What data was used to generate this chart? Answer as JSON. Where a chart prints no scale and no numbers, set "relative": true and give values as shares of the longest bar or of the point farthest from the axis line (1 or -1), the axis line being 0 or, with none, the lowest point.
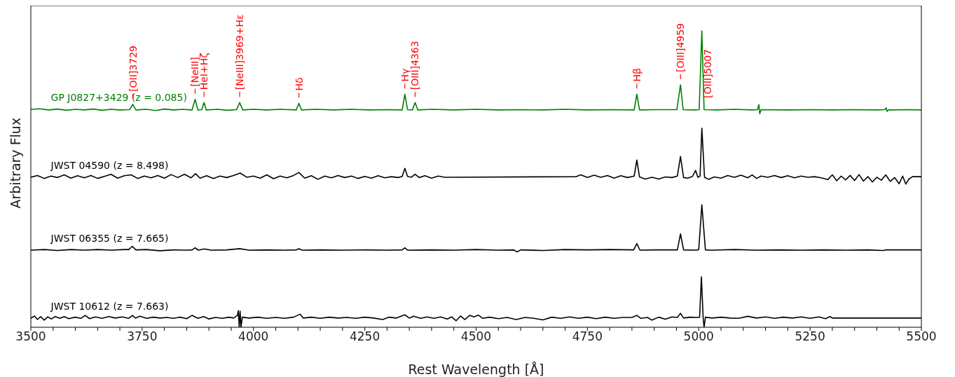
{
  "chart_data": {
    "type": "line",
    "relative": true,
    "xlabel": "Rest Wavelength [Å]",
    "ylabel": "Arbitrary Flux",
    "xlim": [
      3500,
      5500
    ],
    "xticks": [
      3500,
      {
        "value": 3550,
        "label": null
      },
      {
        "value": 3600,
        "label": null
      },
      {
        "value": 3650,
        "label": null
      },
      {
        "value": 3700,
        "label": null
      },
      3750,
      {
        "value": 3800,
        "label": null
      },
      {
        "value": 3850,
        "label": null
      },
      {
        "value": 3900,
        "label": null
      },
      {
        "value": 3950,
        "label": null
      },
      4000,
      {
        "value": 4050,
        "label": null
      },
      {
        "value": 4100,
        "label": null
      },
      {
        "value": 4150,
        "label": null
      },
      {
        "value": 4200,
        "label": null
      },
      4250,
      {
        "value": 4300,
        "label": null
      },
      {
        "value": 4350,
        "label": null
      },
      {
        "value": 4400,
        "label": null
      },
      {
        "value": 4450,
        "label": null
      },
      4500,
      {
        "value": 4550,
        "label": null
      },
      {
        "value": 4600,
        "label": null
      },
      {
        "value": 4650,
        "label": null
      },
      {
        "value": 4700,
        "label": null
      },
      4750,
      {
        "value": 4800,
        "label": null
      },
      {
        "value": 4850,
        "label": null
      },
      {
        "value": 4900,
        "label": null
      },
      {
        "value": 4950,
        "label": null
      },
      5000,
      {
        "value": 5050,
        "label": null
      },
      {
        "value": 5100,
        "label": null
      },
      {
        "value": 5150,
        "label": null
      },
      {
        "value": 5200,
        "label": null
      },
      5250,
      {
        "value": 5300,
        "label": null
      },
      {
        "value": 5350,
        "label": null
      },
      {
        "value": 5400,
        "label": null
      },
      {
        "value": 5450,
        "label": null
      },
      5500
    ],
    "series": [
      {
        "name": "GP J0827+3429 (z = 0.085)",
        "color": "#008000",
        "x": [
          3500,
          3520,
          3540,
          3560,
          3580,
          3600,
          3620,
          3640,
          3660,
          3680,
          3700,
          3722,
          3729,
          3736,
          3760,
          3780,
          3800,
          3820,
          3840,
          3862,
          3869,
          3875,
          3884,
          3889,
          3894,
          3920,
          3940,
          3962,
          3969,
          3976,
          4000,
          4030,
          4060,
          4096,
          4102,
          4108,
          4140,
          4180,
          4220,
          4260,
          4300,
          4334,
          4340,
          4346,
          4357,
          4363,
          4369,
          4400,
          4450,
          4500,
          4550,
          4600,
          4650,
          4700,
          4750,
          4800,
          4855,
          4861,
          4867,
          4900,
          4951,
          4959,
          4965,
          4990,
          5001,
          5007,
          5012,
          5040,
          5080,
          5120,
          5132,
          5135,
          5137,
          5140,
          5200,
          5250,
          5300,
          5350,
          5400,
          5418,
          5421,
          5423,
          5426,
          5470,
          5500
        ],
        "values": [
          0.735,
          0.737,
          0.733,
          0.736,
          0.732,
          0.735,
          0.733,
          0.736,
          0.732,
          0.735,
          0.733,
          0.734,
          0.752,
          0.733,
          0.735,
          0.731,
          0.736,
          0.733,
          0.735,
          0.733,
          0.769,
          0.733,
          0.734,
          0.758,
          0.733,
          0.735,
          0.732,
          0.734,
          0.758,
          0.733,
          0.735,
          0.733,
          0.735,
          0.733,
          0.755,
          0.733,
          0.735,
          0.733,
          0.735,
          0.733,
          0.734,
          0.733,
          0.786,
          0.734,
          0.733,
          0.758,
          0.733,
          0.735,
          0.733,
          0.735,
          0.733,
          0.734,
          0.733,
          0.735,
          0.733,
          0.734,
          0.733,
          0.786,
          0.733,
          0.734,
          0.734,
          0.818,
          0.734,
          0.733,
          0.734,
          1.0,
          0.734,
          0.733,
          0.735,
          0.733,
          0.734,
          0.751,
          0.72,
          0.734,
          0.733,
          0.734,
          0.733,
          0.734,
          0.733,
          0.734,
          0.74,
          0.728,
          0.733,
          0.734,
          0.733
        ]
      },
      {
        "name": "JWST 04590 (z = 8.498)",
        "color": "#000000",
        "x": [
          3500,
          3515,
          3530,
          3545,
          3560,
          3575,
          3590,
          3605,
          3620,
          3635,
          3650,
          3665,
          3680,
          3695,
          3710,
          3725,
          3740,
          3755,
          3770,
          3785,
          3800,
          3815,
          3830,
          3845,
          3860,
          3870,
          3880,
          3895,
          3910,
          3925,
          3940,
          3955,
          3970,
          3985,
          4000,
          4015,
          4030,
          4045,
          4060,
          4075,
          4090,
          4102,
          4115,
          4130,
          4145,
          4160,
          4175,
          4190,
          4205,
          4220,
          4235,
          4250,
          4265,
          4280,
          4295,
          4310,
          4325,
          4334,
          4340,
          4346,
          4355,
          4363,
          4372,
          4385,
          4400,
          4415,
          4430,
          4725,
          4735,
          4750,
          4765,
          4780,
          4795,
          4810,
          4825,
          4840,
          4855,
          4861,
          4867,
          4880,
          4895,
          4910,
          4925,
          4940,
          4952,
          4959,
          4966,
          4975,
          4986,
          4993,
          4998,
          5003,
          5007,
          5013,
          5022,
          5035,
          5050,
          5065,
          5080,
          5095,
          5110,
          5120,
          5130,
          5140,
          5155,
          5170,
          5185,
          5200,
          5215,
          5230,
          5245,
          5260,
          5275,
          5290,
          5300,
          5310,
          5320,
          5330,
          5340,
          5350,
          5360,
          5370,
          5380,
          5390,
          5400,
          5410,
          5420,
          5430,
          5440,
          5450,
          5458,
          5465,
          5472,
          5480,
          5500
        ],
        "values": [
          0.506,
          0.512,
          0.502,
          0.51,
          0.505,
          0.514,
          0.503,
          0.511,
          0.504,
          0.512,
          0.502,
          0.509,
          0.516,
          0.503,
          0.511,
          0.514,
          0.502,
          0.51,
          0.504,
          0.512,
          0.503,
          0.515,
          0.505,
          0.516,
          0.504,
          0.518,
          0.503,
          0.511,
          0.502,
          0.51,
          0.505,
          0.512,
          0.52,
          0.506,
          0.51,
          0.503,
          0.514,
          0.501,
          0.51,
          0.504,
          0.512,
          0.522,
          0.503,
          0.511,
          0.499,
          0.51,
          0.504,
          0.512,
          0.505,
          0.51,
          0.502,
          0.509,
          0.503,
          0.511,
          0.504,
          0.508,
          0.505,
          0.509,
          0.536,
          0.509,
          0.506,
          0.516,
          0.505,
          0.511,
          0.503,
          0.51,
          0.506,
          0.508,
          0.514,
          0.505,
          0.513,
          0.506,
          0.512,
          0.503,
          0.511,
          0.505,
          0.51,
          0.564,
          0.507,
          0.5,
          0.506,
          0.5,
          0.507,
          0.505,
          0.51,
          0.576,
          0.505,
          0.503,
          0.509,
          0.529,
          0.506,
          0.51,
          0.671,
          0.506,
          0.499,
          0.507,
          0.503,
          0.512,
          0.506,
          0.513,
          0.504,
          0.514,
          0.502,
          0.51,
          0.506,
          0.512,
          0.505,
          0.511,
          0.504,
          0.51,
          0.506,
          0.508,
          0.504,
          0.498,
          0.514,
          0.494,
          0.51,
          0.497,
          0.512,
          0.495,
          0.515,
          0.493,
          0.508,
          0.49,
          0.506,
          0.496,
          0.514,
          0.492,
          0.505,
          0.484,
          0.51,
          0.483,
          0.5,
          0.508,
          0.508
        ]
      },
      {
        "name": "JWST 06355 (z = 7.665)",
        "color": "#000000",
        "x": [
          3500,
          3530,
          3560,
          3590,
          3620,
          3650,
          3680,
          3710,
          3720,
          3728,
          3736,
          3760,
          3790,
          3820,
          3850,
          3862,
          3869,
          3876,
          3890,
          3905,
          3940,
          3969,
          3990,
          4030,
          4070,
          4096,
          4102,
          4110,
          4150,
          4200,
          4250,
          4300,
          4334,
          4340,
          4346,
          4400,
          4450,
          4500,
          4550,
          4585,
          4592,
          4600,
          4650,
          4700,
          4750,
          4800,
          4854,
          4861,
          4868,
          4900,
          4952,
          4959,
          4966,
          4995,
          5000,
          5007,
          5015,
          5030,
          5080,
          5130,
          5180,
          5230,
          5280,
          5330,
          5380,
          5415,
          5420,
          5500
        ],
        "values": [
          0.26,
          0.262,
          0.259,
          0.262,
          0.26,
          0.262,
          0.26,
          0.262,
          0.262,
          0.273,
          0.261,
          0.262,
          0.258,
          0.261,
          0.26,
          0.261,
          0.268,
          0.26,
          0.264,
          0.26,
          0.261,
          0.265,
          0.26,
          0.261,
          0.26,
          0.261,
          0.265,
          0.26,
          0.261,
          0.26,
          0.261,
          0.26,
          0.261,
          0.268,
          0.26,
          0.261,
          0.26,
          0.262,
          0.26,
          0.261,
          0.254,
          0.261,
          0.259,
          0.262,
          0.261,
          0.262,
          0.261,
          0.282,
          0.26,
          0.261,
          0.261,
          0.315,
          0.261,
          0.26,
          0.262,
          0.413,
          0.261,
          0.26,
          0.262,
          0.26,
          0.261,
          0.26,
          0.261,
          0.26,
          0.261,
          0.259,
          0.261,
          0.261
        ]
      },
      {
        "name": "JWST 10612 (z = 7.663)",
        "color": "#000000",
        "x": [
          3500,
          3508,
          3515,
          3522,
          3530,
          3538,
          3546,
          3555,
          3565,
          3575,
          3585,
          3600,
          3612,
          3622,
          3632,
          3645,
          3660,
          3675,
          3690,
          3705,
          3720,
          3728,
          3735,
          3745,
          3760,
          3775,
          3790,
          3805,
          3820,
          3835,
          3850,
          3862,
          3875,
          3888,
          3900,
          3915,
          3930,
          3945,
          3955,
          3964,
          3966,
          3968,
          3970,
          3972,
          3975,
          3990,
          4010,
          4030,
          4050,
          4070,
          4090,
          4105,
          4112,
          4130,
          4150,
          4170,
          4190,
          4210,
          4230,
          4250,
          4270,
          4290,
          4305,
          4320,
          4340,
          4350,
          4360,
          4375,
          4390,
          4405,
          4420,
          4435,
          4445,
          4455,
          4465,
          4475,
          4485,
          4495,
          4505,
          4515,
          4530,
          4550,
          4570,
          4590,
          4610,
          4630,
          4650,
          4670,
          4690,
          4710,
          4730,
          4750,
          4770,
          4790,
          4810,
          4830,
          4850,
          4861,
          4870,
          4885,
          4895,
          4910,
          4925,
          4940,
          4952,
          4959,
          4966,
          4980,
          4995,
          5002,
          5006,
          5010,
          5012,
          5015,
          5030,
          5050,
          5070,
          5090,
          5110,
          5130,
          5150,
          5170,
          5190,
          5210,
          5230,
          5250,
          5270,
          5285,
          5295,
          5300,
          5500
        ],
        "values": [
          0.03,
          0.038,
          0.026,
          0.036,
          0.024,
          0.035,
          0.028,
          0.036,
          0.03,
          0.036,
          0.029,
          0.034,
          0.03,
          0.04,
          0.029,
          0.035,
          0.03,
          0.036,
          0.031,
          0.035,
          0.03,
          0.04,
          0.031,
          0.037,
          0.03,
          0.034,
          0.031,
          0.033,
          0.03,
          0.034,
          0.029,
          0.04,
          0.03,
          0.036,
          0.028,
          0.033,
          0.03,
          0.034,
          0.031,
          0.04,
          0.056,
          0.0,
          0.054,
          0.001,
          0.034,
          0.031,
          0.034,
          0.03,
          0.033,
          0.03,
          0.034,
          0.044,
          0.031,
          0.034,
          0.03,
          0.034,
          0.031,
          0.033,
          0.03,
          0.034,
          0.031,
          0.026,
          0.034,
          0.031,
          0.042,
          0.031,
          0.037,
          0.03,
          0.035,
          0.03,
          0.035,
          0.028,
          0.035,
          0.022,
          0.038,
          0.026,
          0.04,
          0.035,
          0.041,
          0.03,
          0.034,
          0.029,
          0.033,
          0.026,
          0.033,
          0.03,
          0.025,
          0.034,
          0.03,
          0.035,
          0.03,
          0.034,
          0.029,
          0.034,
          0.03,
          0.033,
          0.033,
          0.04,
          0.03,
          0.033,
          0.024,
          0.034,
          0.027,
          0.035,
          0.033,
          0.047,
          0.031,
          0.034,
          0.033,
          0.034,
          0.17,
          0.03,
          0.0,
          0.034,
          0.031,
          0.034,
          0.031,
          0.03,
          0.037,
          0.031,
          0.035,
          0.03,
          0.034,
          0.031,
          0.035,
          0.03,
          0.035,
          0.029,
          0.036,
          0.031,
          0.031
        ]
      }
    ],
    "annotations": [
      {
        "text": "[OII]3729",
        "x": 3729,
        "y": 0.752
      },
      {
        "text": "[NeIII]",
        "x": 3869,
        "y": 0.769
      },
      {
        "text": "HeI+Hζ",
        "x": 3889,
        "y": 0.758
      },
      {
        "text": "[NeIII]3969+Hε",
        "x": 3969,
        "y": 0.758
      },
      {
        "text": "Hδ",
        "x": 4102,
        "y": 0.755
      },
      {
        "text": "Hγ",
        "x": 4340,
        "y": 0.786
      },
      {
        "text": "[OIII]4363",
        "x": 4363,
        "y": 0.758
      },
      {
        "text": "Hβ",
        "x": 4861,
        "y": 0.786
      },
      {
        "text": "[OIII]4959",
        "x": 4959,
        "y": 0.818
      },
      {
        "text": "[OIII]5007",
        "x": 5007,
        "y": 1.0
      }
    ]
  }
}
